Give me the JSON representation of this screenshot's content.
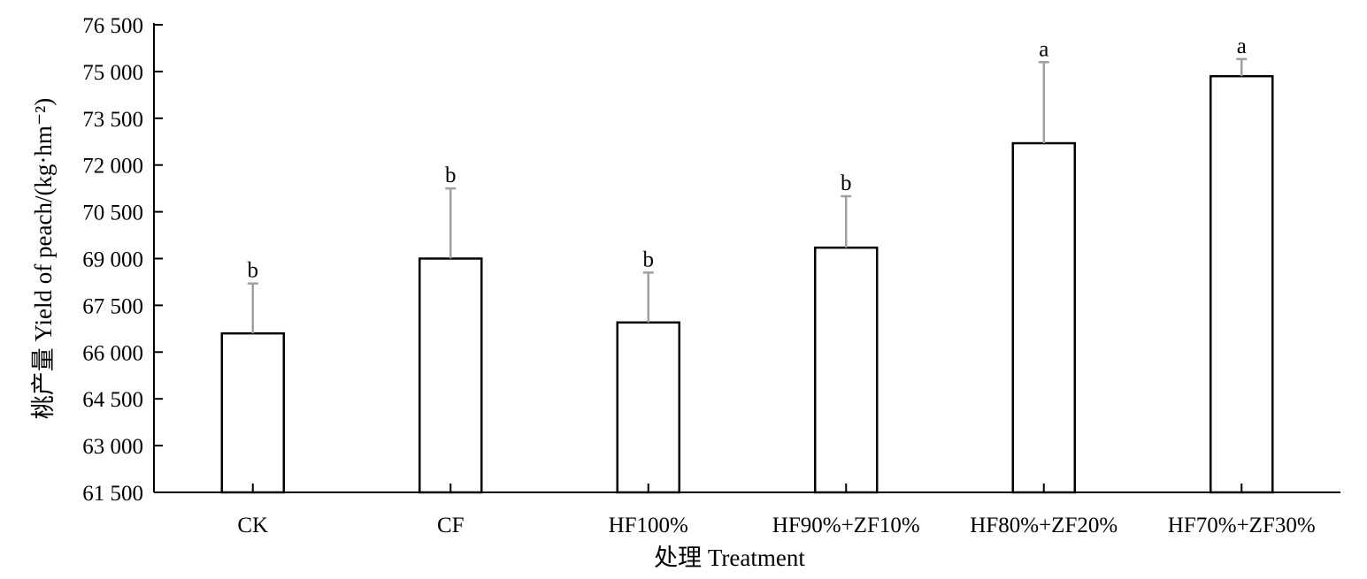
{
  "chart_data": {
    "type": "bar",
    "xlabel": "处理 Treatment",
    "ylabel": "桃产量 Yield of peach/(kg·hm⁻²)",
    "ylim": [
      61500,
      76500
    ],
    "yticks": [
      61500,
      63000,
      64500,
      66000,
      67500,
      69000,
      70500,
      72000,
      73500,
      75000,
      76500
    ],
    "ytick_labels": [
      "61 500",
      "63 000",
      "64 500",
      "66 000",
      "67 500",
      "69 000",
      "70 500",
      "72 000",
      "73 500",
      "75 000",
      "76 500"
    ],
    "categories": [
      "CK",
      "CF",
      "HF100%",
      "HF90%+ZF10%",
      "HF80%+ZF20%",
      "HF70%+ZF30%"
    ],
    "values": [
      66600,
      69000,
      66950,
      69350,
      72700,
      74850
    ],
    "error": [
      1600,
      2250,
      1600,
      1650,
      2600,
      550
    ],
    "significance": [
      "b",
      "b",
      "b",
      "b",
      "a",
      "a"
    ],
    "grid": false,
    "bar_fill": "#ffffff",
    "bar_stroke": "#000000",
    "error_color": "#a0a0a0"
  }
}
